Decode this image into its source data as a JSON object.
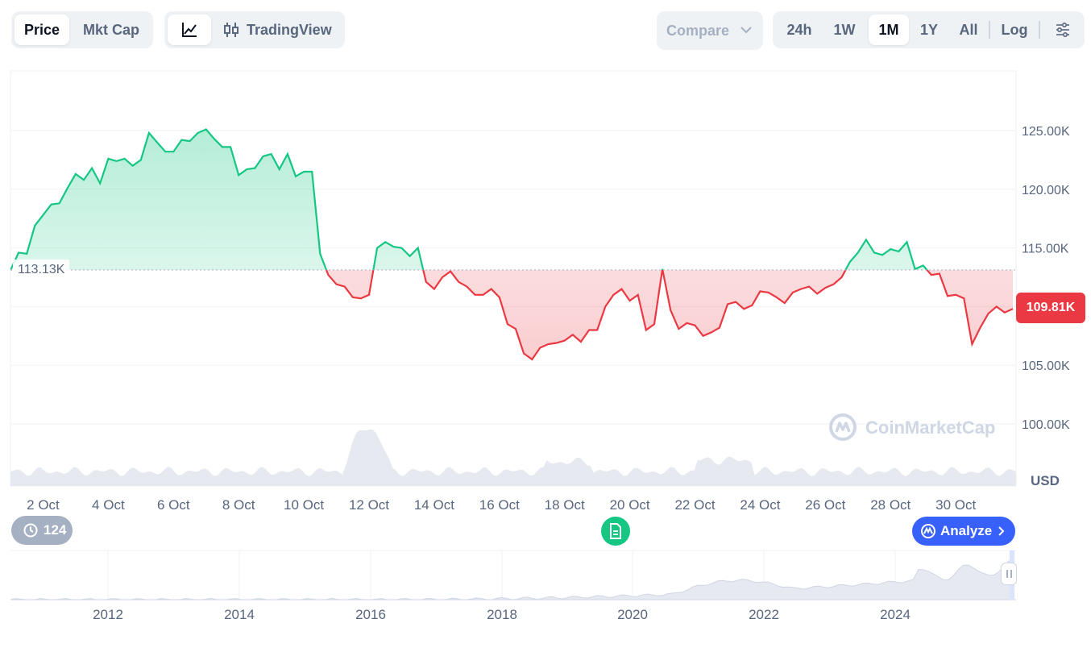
{
  "toolbar": {
    "metric_tabs": [
      "Price",
      "Mkt Cap"
    ],
    "active_metric": "Price",
    "chart_style_label": "TradingView",
    "compare_label": "Compare",
    "ranges": [
      "24h",
      "1W",
      "1M",
      "1Y",
      "All"
    ],
    "active_range": "1M",
    "log_label": "Log"
  },
  "chart_data": {
    "type": "area",
    "currency_label": "USD",
    "y_ticks": [
      "100.00K",
      "105.00K",
      "110.00K",
      "115.00K",
      "120.00K",
      "125.00K"
    ],
    "ylim": [
      100000,
      130000
    ],
    "x_ticks": [
      "2 Oct",
      "4 Oct",
      "6 Oct",
      "8 Oct",
      "10 Oct",
      "12 Oct",
      "14 Oct",
      "16 Oct",
      "18 Oct",
      "20 Oct",
      "22 Oct",
      "24 Oct",
      "26 Oct",
      "28 Oct",
      "30 Oct"
    ],
    "baseline": 113130,
    "baseline_label": "113.13K",
    "current_label": "109.81K",
    "colors": {
      "up": "#16c784",
      "down": "#ea3943",
      "up_fill": "#16c784",
      "down_fill": "#ea3943"
    },
    "x": [
      1.0,
      1.25,
      1.5,
      1.75,
      2.0,
      2.25,
      2.5,
      2.75,
      3.0,
      3.25,
      3.5,
      3.75,
      4.0,
      4.25,
      4.5,
      4.75,
      5.0,
      5.25,
      5.5,
      5.75,
      6.0,
      6.25,
      6.5,
      6.75,
      7.0,
      7.25,
      7.5,
      7.75,
      8.0,
      8.25,
      8.5,
      8.75,
      9.0,
      9.25,
      9.5,
      9.75,
      10.0,
      10.25,
      10.5,
      10.75,
      11.0,
      11.25,
      11.5,
      11.75,
      12.0,
      12.25,
      12.5,
      12.75,
      13.0,
      13.25,
      13.5,
      13.75,
      14.0,
      14.25,
      14.5,
      14.75,
      15.0,
      15.25,
      15.5,
      15.75,
      16.0,
      16.25,
      16.5,
      16.75,
      17.0,
      17.25,
      17.5,
      17.75,
      18.0,
      18.25,
      18.5,
      18.75,
      19.0,
      19.25,
      19.5,
      19.75,
      20.0,
      20.25,
      20.5,
      20.75,
      21.0,
      21.25,
      21.5,
      21.75,
      22.0,
      22.25,
      22.5,
      22.75,
      23.0,
      23.25,
      23.5,
      23.75,
      24.0,
      24.25,
      24.5,
      24.75,
      25.0,
      25.25,
      25.5,
      25.75,
      26.0,
      26.25,
      26.5,
      26.75,
      27.0,
      27.25,
      27.5,
      27.75,
      28.0,
      28.25,
      28.5,
      28.75,
      29.0,
      29.25,
      29.5,
      29.75,
      30.0,
      30.25,
      30.5,
      30.75,
      31.0,
      31.25,
      31.5,
      31.75
    ],
    "y": [
      113100,
      114600,
      114500,
      116900,
      117800,
      118700,
      118800,
      120100,
      121300,
      120800,
      121800,
      120500,
      122600,
      122400,
      122600,
      122000,
      122500,
      124800,
      124000,
      123200,
      123200,
      124200,
      124100,
      124800,
      125100,
      124300,
      123600,
      123600,
      121200,
      121700,
      121800,
      122800,
      123000,
      121700,
      123000,
      121100,
      121500,
      121500,
      114500,
      112700,
      111900,
      111700,
      110800,
      110700,
      111000,
      115000,
      115500,
      115100,
      115000,
      114300,
      115000,
      112100,
      111500,
      112500,
      113000,
      112100,
      111700,
      111000,
      111000,
      111500,
      110800,
      108500,
      108100,
      106000,
      105500,
      106500,
      106800,
      106900,
      107100,
      107600,
      107000,
      108000,
      108000,
      110000,
      111000,
      111500,
      110500,
      111000,
      108000,
      108500,
      113200,
      109700,
      108100,
      108600,
      108400,
      107500,
      107800,
      108200,
      110200,
      110400,
      109800,
      110100,
      111300,
      111200,
      110800,
      110300,
      111200,
      111500,
      111700,
      111100,
      111600,
      111900,
      112500,
      113800,
      114600,
      115700,
      114600,
      114400,
      114900,
      114700,
      115500,
      113200,
      113500,
      112700,
      112800,
      110900,
      111000,
      110700,
      106800,
      108200,
      109400,
      110000,
      109500,
      109810
    ]
  },
  "overview": {
    "x_ticks": [
      "2012",
      "2014",
      "2016",
      "2018",
      "2020",
      "2022",
      "2024"
    ]
  },
  "history_count": "124",
  "analyze_label": "Analyze",
  "watermark": "CoinMarketCap"
}
